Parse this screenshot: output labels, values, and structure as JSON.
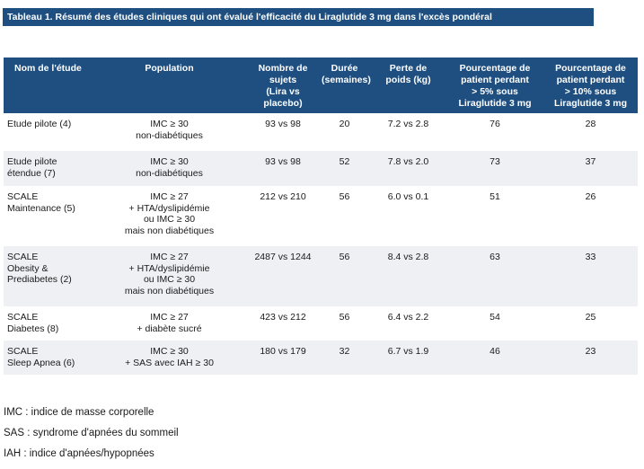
{
  "caption": "Tableau 1. Résumé des études cliniques qui ont évalué l'efficacité du Liraglutide 3 mg dans l'excès pondéral",
  "headers": [
    "Nom de l'étude",
    "Population",
    "Nombre de\nsujets\n(Lira vs\nplacebo)",
    "Durée\n(semaines)",
    "Perte de\npoids (kg)",
    "Pourcentage de\npatient perdant\n> 5% sous\nLiraglutide 3 mg",
    "Pourcentage de\npatient perdant\n> 10% sous\nLiraglutide 3 mg"
  ],
  "rows": [
    [
      "Etude pilote (4)",
      "IMC ≥ 30\nnon-diabétiques",
      "93 vs 98",
      "20",
      "7.2 vs 2.8",
      "76",
      "28"
    ],
    [
      "Etude pilote\nétendue (7)",
      "IMC ≥ 30\nnon-diabétiques",
      "93 vs 98",
      "52",
      "7.8 vs 2.0",
      "73",
      "37"
    ],
    [
      "SCALE\nMaintenance (5)",
      "IMC ≥ 27\n+ HTA/dyslipidémie\nou IMC ≥ 30\nmais non diabétiques",
      "212 vs 210",
      "56",
      "6.0 vs 0.1",
      "51",
      "26"
    ],
    [
      "SCALE\nObesity &\nPrediabetes (2)",
      "IMC ≥ 27\n+ HTA/dyslipidémie\nou IMC ≥ 30\nmais non diabétiques",
      "2487 vs 1244",
      "56",
      "8.4 vs 2.8",
      "63",
      "33"
    ],
    [
      "SCALE\nDiabetes (8)",
      "IMC ≥ 27\n+ diabète sucré",
      "423 vs 212",
      "56",
      "6.4 vs 2.2",
      "54",
      "25"
    ],
    [
      "SCALE\nSleep Apnea (6)",
      "IMC ≥ 30\n+ SAS avec IAH ≥ 30",
      "180 vs 179",
      "32",
      "6.7 vs 1.9",
      "46",
      "23"
    ]
  ],
  "notes": [
    "IMC : indice de masse corporelle",
    "SAS : syndrome d'apnées du sommeil",
    "IAH : indice d'apnées/hypopnées"
  ]
}
